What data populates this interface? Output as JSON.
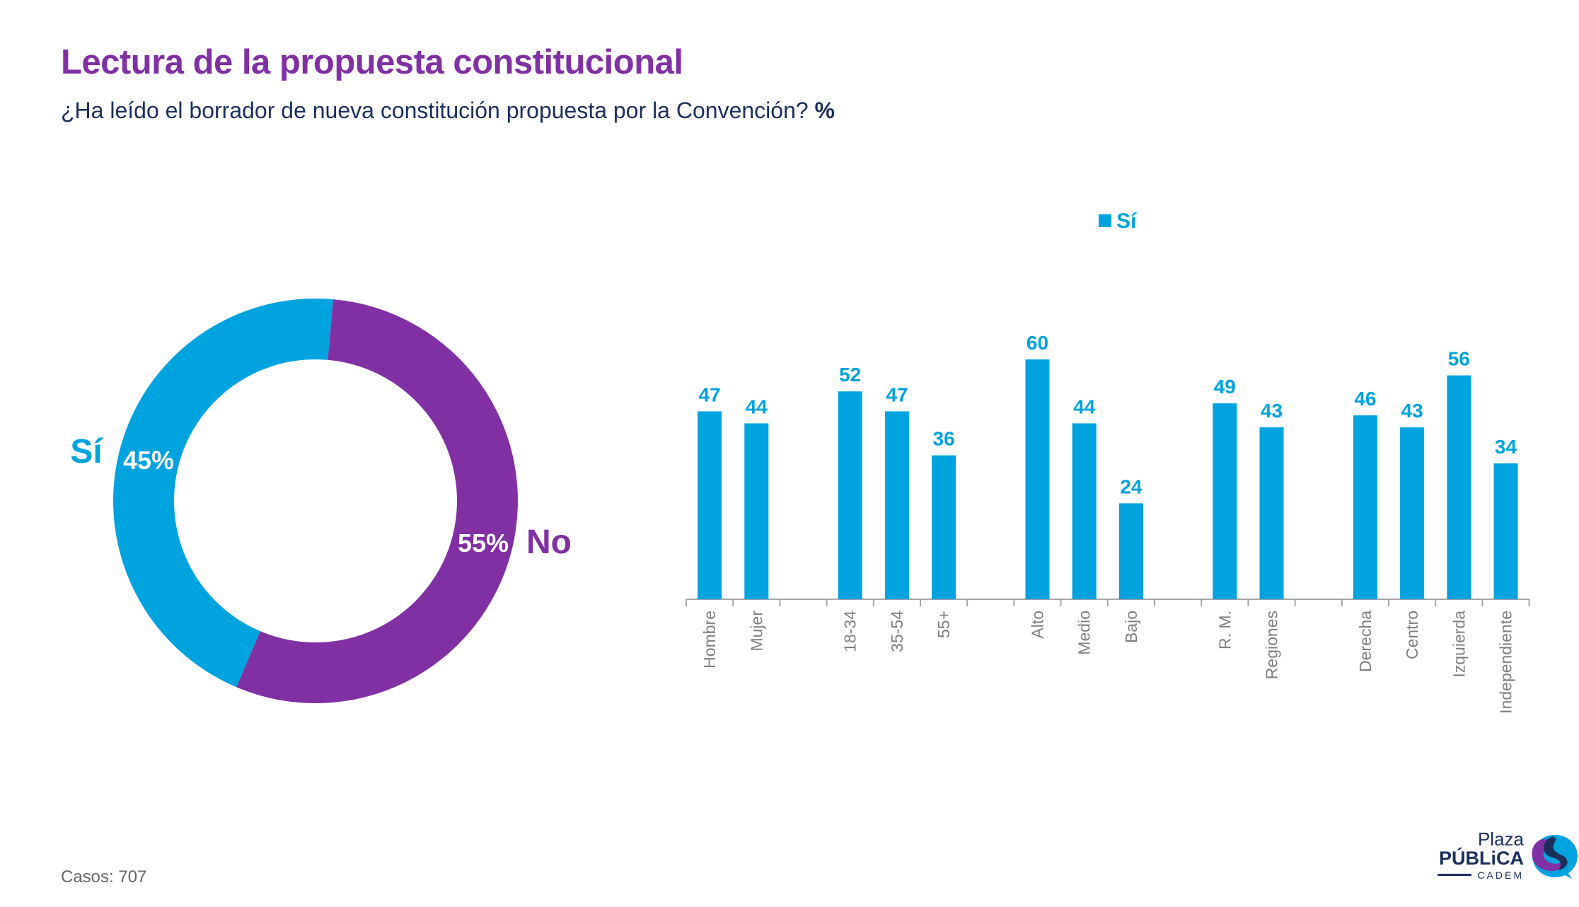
{
  "header": {
    "title": "Lectura de la propuesta constitucional",
    "subtitle": "¿Ha leído el borrador de nueva constitución propuesta por la Convención?",
    "subtitle_unit": "%"
  },
  "footer": {
    "cases": "Casos: 707"
  },
  "logo": {
    "line1": "Plaza",
    "line2": "PÚBLiCA",
    "line3": "CADEM"
  },
  "colors": {
    "si": "#00A3DE",
    "no": "#8130A3",
    "title": "#8130A3",
    "text": "#1B2F5C",
    "axis": "#A6A6A6",
    "label": "#7F7F7F"
  },
  "chart_data": [
    {
      "type": "pie",
      "variant": "donut",
      "slices": [
        {
          "name": "Sí",
          "value": 45,
          "label": "45%"
        },
        {
          "name": "No",
          "value": 55,
          "label": "55%"
        }
      ]
    },
    {
      "type": "bar",
      "legend": [
        "Sí"
      ],
      "legend_position": "top-center",
      "categories": [
        "Hombre",
        "Mujer",
        "",
        "18-34",
        "35-54",
        "55+",
        "",
        "Alto",
        "Medio",
        "Bajo",
        "",
        "R. M.",
        "Regiones",
        "",
        "Derecha",
        "Centro",
        "Izquierda",
        "Independiente"
      ],
      "series": [
        {
          "name": "Sí",
          "values": [
            47,
            44,
            null,
            52,
            47,
            36,
            null,
            60,
            44,
            24,
            null,
            49,
            43,
            null,
            46,
            43,
            56,
            34
          ]
        }
      ],
      "ylim": [
        0,
        65
      ],
      "grid": false
    }
  ]
}
